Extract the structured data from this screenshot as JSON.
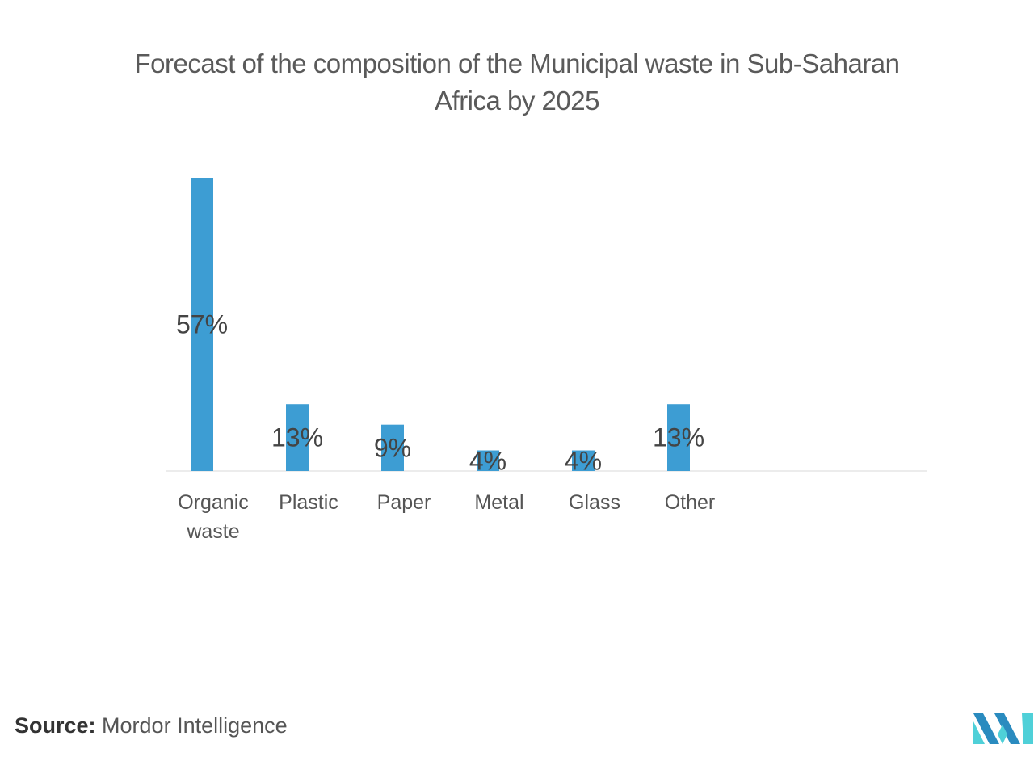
{
  "chart_data": {
    "type": "bar",
    "title": "Forecast of the composition of the Municipal waste in Sub-Saharan Africa by 2025",
    "categories": [
      "Organic\nwaste",
      "Plastic",
      "Paper",
      "Metal",
      "Glass",
      "Other"
    ],
    "values": [
      57,
      13,
      9,
      4,
      4,
      13
    ],
    "value_labels": [
      "57%",
      "13%",
      "9%",
      "4%",
      "4%",
      "13%"
    ],
    "xlabel": "",
    "ylabel": "",
    "ylim": [
      0,
      57
    ],
    "grid": false,
    "legend": "none",
    "bar_color": "#3d9dd3"
  },
  "source": {
    "label": "Source:",
    "text": "Mordor Intelligence"
  },
  "colors": {
    "bar": "#3d9dd3",
    "axis": "#d9d9d9",
    "logo_dark": "#2a8bbf",
    "logo_light": "#4fd0d8"
  }
}
